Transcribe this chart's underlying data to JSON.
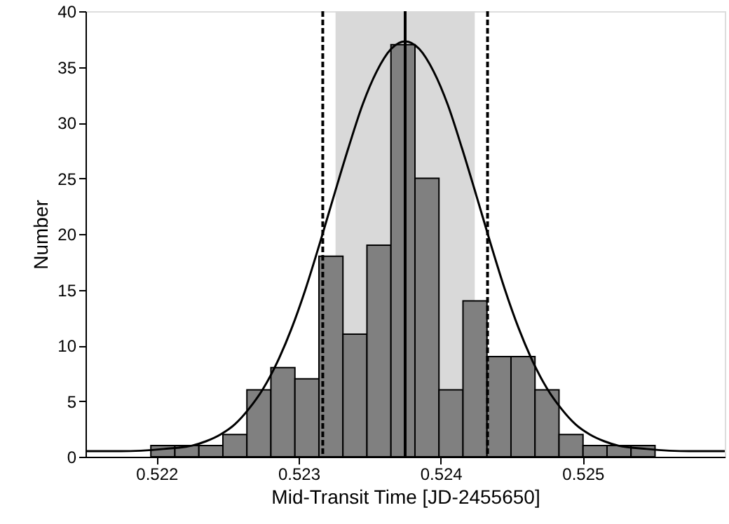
{
  "chart_data": {
    "type": "histogram",
    "xlabel": "Mid-Transit Time [JD-2455650]",
    "ylabel": "Number",
    "bins": [
      0.52196,
      0.522129,
      0.522298,
      0.522467,
      0.522636,
      0.522805,
      0.522974,
      0.523143,
      0.523312,
      0.523481,
      0.52365,
      0.523819,
      0.523988,
      0.524157,
      0.524326,
      0.524495,
      0.524664,
      0.524833,
      0.525002,
      0.525171,
      0.52534,
      0.525509
    ],
    "values": [
      1,
      1,
      1,
      2,
      6,
      8,
      7,
      18,
      11,
      19,
      37,
      25,
      6,
      14,
      9,
      9,
      6,
      2,
      1,
      1,
      1
    ],
    "color": "#808080",
    "series": [
      {
        "type": "line",
        "color": "#000000",
        "x": [
          0.5215,
          0.52175,
          0.52205,
          0.52225,
          0.52235,
          0.52245,
          0.52255,
          0.52265,
          0.52275,
          0.52285,
          0.52295,
          0.52305,
          0.52315,
          0.52325,
          0.52335,
          0.52345,
          0.52355,
          0.52365,
          0.52375,
          0.52385,
          0.52395,
          0.52405,
          0.52415,
          0.52425,
          0.52435,
          0.52445,
          0.52455,
          0.52465,
          0.52475,
          0.52485,
          0.52495,
          0.52505,
          0.52515,
          0.52525,
          0.52545,
          0.52575,
          0.526
        ],
        "values": [
          0.5,
          0.5,
          0.7,
          1.0,
          1.4,
          2.0,
          2.9,
          4.3,
          6.1,
          8.5,
          11.5,
          15.1,
          19.2,
          23.5,
          27.7,
          31.6,
          34.6,
          36.6,
          37.3,
          36.6,
          34.6,
          31.6,
          27.7,
          23.5,
          19.2,
          15.1,
          11.5,
          8.5,
          6.1,
          4.3,
          2.9,
          2.0,
          1.4,
          1.0,
          0.7,
          0.5,
          0.5
        ]
      }
    ],
    "ref_lines": [
      {
        "axis": "x",
        "value": 0.52317,
        "color": "#000000",
        "line_style": "dashed"
      },
      {
        "axis": "x",
        "value": 0.52375,
        "color": "#000000",
        "line_style": "solid"
      },
      {
        "axis": "x",
        "value": 0.52433,
        "color": "#000000",
        "line_style": "dashed"
      }
    ],
    "bands": [
      {
        "axis": "x",
        "from": 0.52326,
        "to": 0.52424,
        "color": "#d9d9d9"
      }
    ],
    "xlim": [
      0.5215,
      0.526
    ],
    "ylim": [
      0,
      40
    ],
    "xticks": [
      0.522,
      0.523,
      0.524,
      0.525
    ],
    "yticks": [
      0,
      5,
      10,
      15,
      20,
      25,
      30,
      35,
      40
    ],
    "grid": false
  }
}
